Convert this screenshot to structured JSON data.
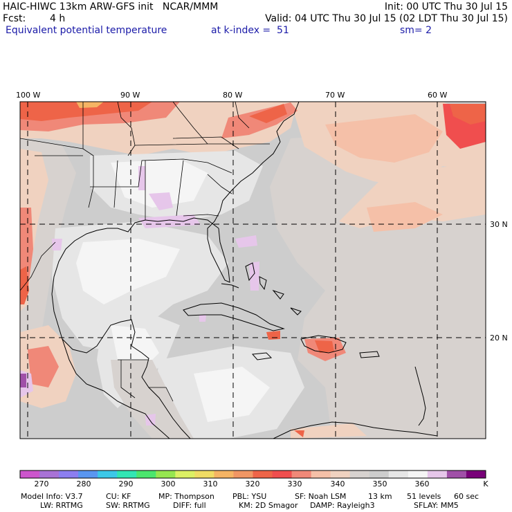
{
  "header": {
    "title": "HAIC-HIWC 13km ARW-GFS init   NCAR/MMM",
    "init": "Init: 00 UTC Thu 30 Jul 15",
    "fcst_label": "Fcst:",
    "fcst_value": "4 h",
    "valid": "Valid: 04 UTC Thu 30 Jul 15 (02 LDT Thu 30 Jul 15)",
    "field": "Equivalent potential temperature",
    "level": "at k-index =  51",
    "smooth": "sm= 2"
  },
  "axes": {
    "lon_labels": [
      "100 W",
      "90 W",
      "80 W",
      "70 W",
      "60 W"
    ],
    "lat_labels": [
      "30 N",
      "20 N"
    ]
  },
  "colorbar": {
    "labels": [
      "270",
      "280",
      "290",
      "300",
      "310",
      "320",
      "330",
      "340",
      "350",
      "360"
    ],
    "unit": "K",
    "colors": [
      "#cc55cc",
      "#a872d6",
      "#8c7ef0",
      "#5a96f0",
      "#3cc8e8",
      "#32e6b4",
      "#4be66e",
      "#96e650",
      "#dcf064",
      "#f0dc64",
      "#f5b464",
      "#f09664",
      "#ee6448",
      "#f04e4e",
      "#f08878",
      "#f5c0a8",
      "#f0d2c0",
      "#d7d2cf",
      "#cdcdcd",
      "#e6e6e6",
      "#f5f5f5",
      "#e6c6ea",
      "#a050a8",
      "#780078"
    ]
  },
  "footer": {
    "line1": [
      "Model Info: V3.7",
      "CU: KF",
      "MP: Thompson",
      "PBL: YSU",
      "SF: Noah LSM",
      "13 km",
      "51 levels",
      "60 sec"
    ],
    "line2": [
      "LW: RRTMG",
      "SW: RRTMG",
      "DIFF: full",
      "KM: 2D Smagor",
      "DAMP: Rayleigh3",
      "SFLAY: MM5"
    ]
  }
}
